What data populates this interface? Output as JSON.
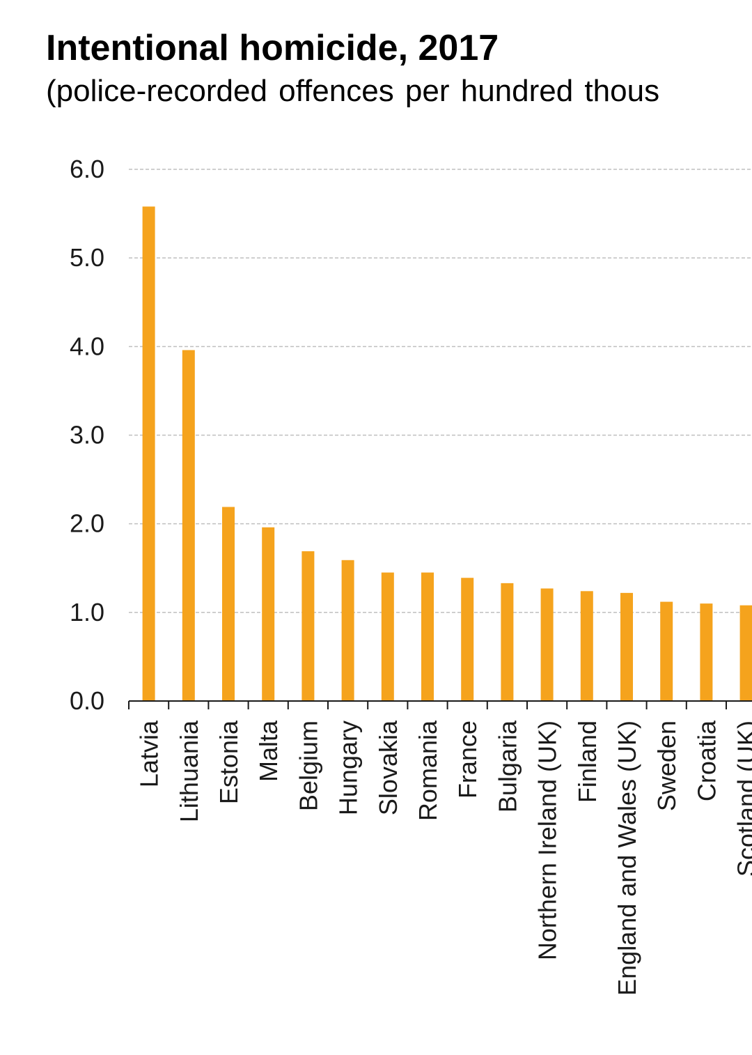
{
  "chart_data": {
    "type": "bar",
    "title": "Intentional homicide, 2017",
    "subtitle": "(police-recorded offences per hundred thous",
    "xlabel": "",
    "ylabel": "",
    "ylim": [
      0,
      6
    ],
    "ytick_labels": [
      "0.0",
      "1.0",
      "2.0",
      "3.0",
      "4.0",
      "5.0",
      "6.0"
    ],
    "grid": true,
    "bar_color": "#f5a31d",
    "categories": [
      "Latvia",
      "Lithuania",
      "Estonia",
      "Malta",
      "Belgium",
      "Hungary",
      "Slovakia",
      "Romania",
      "France",
      "Bulgaria",
      "Northern Ireland (UK)",
      "Finland",
      "England and Wales (UK)",
      "Sweden",
      "Croatia",
      "Scotland (UK)"
    ],
    "values": [
      5.58,
      3.96,
      2.19,
      1.96,
      1.69,
      1.59,
      1.45,
      1.45,
      1.39,
      1.33,
      1.27,
      1.24,
      1.22,
      1.12,
      1.1,
      1.08
    ]
  }
}
